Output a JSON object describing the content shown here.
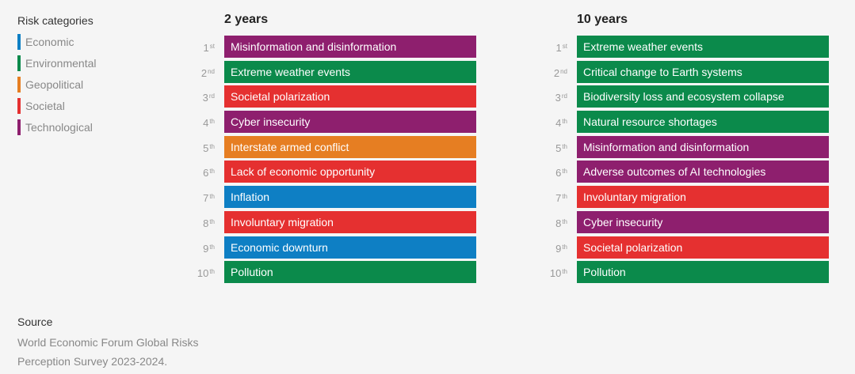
{
  "legend": {
    "title": "Risk categories",
    "items": [
      {
        "label": "Economic",
        "color": "#0e7fc4"
      },
      {
        "label": "Environmental",
        "color": "#0b8a4b"
      },
      {
        "label": "Geopolitical",
        "color": "#e67e22"
      },
      {
        "label": "Societal",
        "color": "#e53030"
      },
      {
        "label": "Technological",
        "color": "#8e1f6e"
      }
    ]
  },
  "chart_data": [
    {
      "type": "table",
      "title": "2 years",
      "rows": [
        {
          "rank": "1",
          "suffix": "st",
          "label": "Misinformation and disinformation",
          "category": "Technological"
        },
        {
          "rank": "2",
          "suffix": "nd",
          "label": "Extreme weather events",
          "category": "Environmental"
        },
        {
          "rank": "3",
          "suffix": "rd",
          "label": "Societal polarization",
          "category": "Societal"
        },
        {
          "rank": "4",
          "suffix": "th",
          "label": "Cyber insecurity",
          "category": "Technological"
        },
        {
          "rank": "5",
          "suffix": "th",
          "label": "Interstate armed conflict",
          "category": "Geopolitical"
        },
        {
          "rank": "6",
          "suffix": "th",
          "label": "Lack of economic opportunity",
          "category": "Societal"
        },
        {
          "rank": "7",
          "suffix": "th",
          "label": "Inflation",
          "category": "Economic"
        },
        {
          "rank": "8",
          "suffix": "th",
          "label": "Involuntary migration",
          "category": "Societal"
        },
        {
          "rank": "9",
          "suffix": "th",
          "label": "Economic downturn",
          "category": "Economic"
        },
        {
          "rank": "10",
          "suffix": "th",
          "label": "Pollution",
          "category": "Environmental"
        }
      ]
    },
    {
      "type": "table",
      "title": "10 years",
      "rows": [
        {
          "rank": "1",
          "suffix": "st",
          "label": "Extreme weather events",
          "category": "Environmental"
        },
        {
          "rank": "2",
          "suffix": "nd",
          "label": "Critical change to Earth systems",
          "category": "Environmental"
        },
        {
          "rank": "3",
          "suffix": "rd",
          "label": "Biodiversity loss and ecosystem collapse",
          "category": "Environmental"
        },
        {
          "rank": "4",
          "suffix": "th",
          "label": "Natural resource shortages",
          "category": "Environmental"
        },
        {
          "rank": "5",
          "suffix": "th",
          "label": "Misinformation and disinformation",
          "category": "Technological"
        },
        {
          "rank": "6",
          "suffix": "th",
          "label": "Adverse outcomes of AI technologies",
          "category": "Technological"
        },
        {
          "rank": "7",
          "suffix": "th",
          "label": "Involuntary migration",
          "category": "Societal"
        },
        {
          "rank": "8",
          "suffix": "th",
          "label": "Cyber insecurity",
          "category": "Technological"
        },
        {
          "rank": "9",
          "suffix": "th",
          "label": "Societal polarization",
          "category": "Societal"
        },
        {
          "rank": "10",
          "suffix": "th",
          "label": "Pollution",
          "category": "Environmental"
        }
      ]
    }
  ],
  "source": {
    "title": "Source",
    "line1": "World Economic Forum Global Risks",
    "line2": "Perception Survey 2023-2024."
  }
}
